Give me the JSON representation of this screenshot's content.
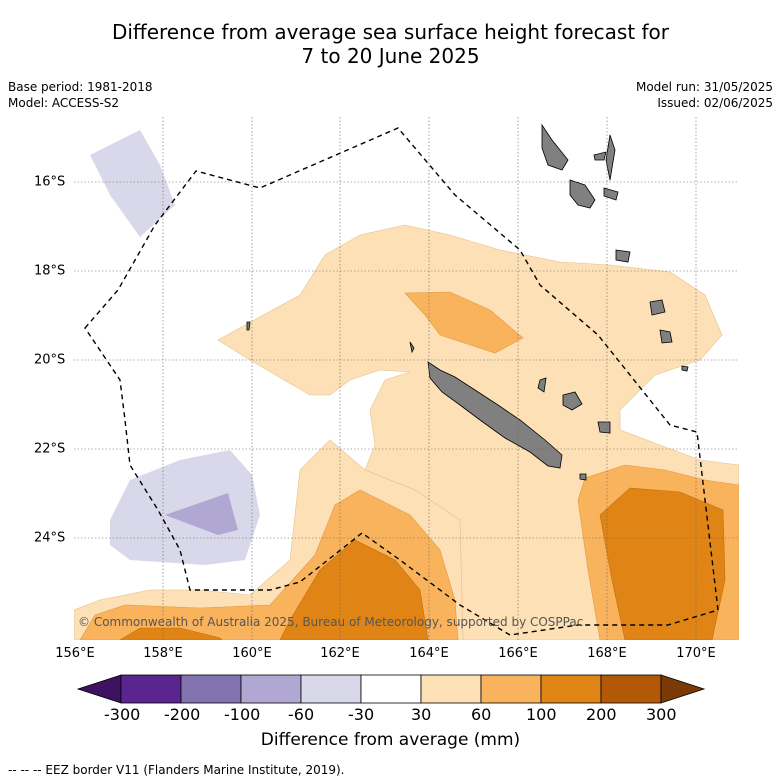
{
  "title_line1": "Difference from average sea surface height forecast for",
  "title_line2": "7 to 20 June 2025",
  "meta": {
    "base_period": "Base period: 1981-2018",
    "model": "Model: ACCESS-S2",
    "model_run": "Model run: 31/05/2025",
    "issued": "Issued: 02/06/2025"
  },
  "map": {
    "lon_labels": [
      "156°E",
      "158°E",
      "160°E",
      "162°E",
      "164°E",
      "166°E",
      "168°E",
      "170°E"
    ],
    "lat_labels": [
      "16°S",
      "18°S",
      "20°S",
      "22°S",
      "24°S"
    ],
    "copyright": "© Commonwealth of Australia 2025, Bureau of Meteorology, supported by COSPPac",
    "land_color": "#808080"
  },
  "colorbar": {
    "ticks": [
      "-300",
      "-200",
      "-100",
      "-60",
      "-30",
      "30",
      "60",
      "100",
      "200",
      "300"
    ],
    "colors": [
      "#3d1260",
      "#5b2590",
      "#8273b0",
      "#b0a8d2",
      "#d8d8ea",
      "#ffffff",
      "#fde0b5",
      "#f9b35d",
      "#e08515",
      "#b35807",
      "#7a3a05"
    ],
    "title": "Difference from average (mm)"
  },
  "legend": {
    "text": "-- -- -- EEZ border V11 (Flanders Marine Institute, 2019)."
  }
}
